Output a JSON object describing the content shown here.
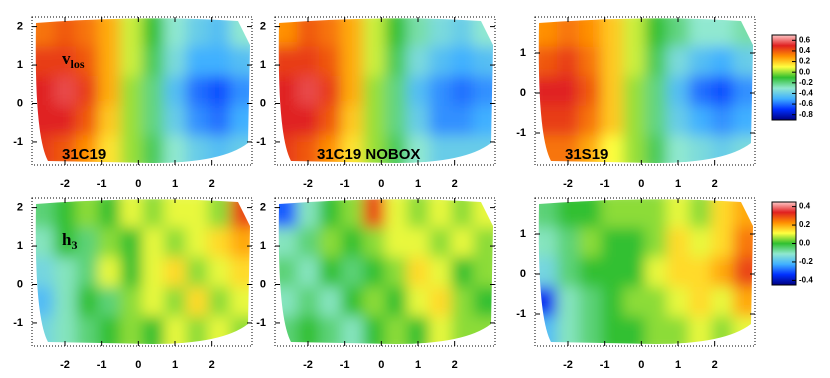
{
  "chart_data": [
    {
      "type": "heatmap",
      "annotation": "v",
      "annotation_sub": "los",
      "label": "31C19",
      "colorbar": 0,
      "xlim": [
        -2.9,
        3.1
      ],
      "ylim": [
        -1.6,
        2.25
      ],
      "xticks": [
        -2,
        -1,
        0,
        1,
        2
      ],
      "yticks": [
        2,
        1,
        0,
        -1
      ],
      "values": [
        [
          0.35,
          0.4,
          0.35,
          0.25,
          0.05,
          -0.1,
          -0.3,
          -0.4,
          -0.45,
          -0.3
        ],
        [
          0.45,
          0.45,
          0.4,
          0.25,
          0.05,
          -0.15,
          -0.35,
          -0.5,
          -0.5,
          -0.45
        ],
        [
          0.5,
          0.55,
          0.45,
          0.25,
          0.0,
          -0.2,
          -0.45,
          -0.6,
          -0.65,
          -0.55
        ],
        [
          0.5,
          0.5,
          0.4,
          0.2,
          0.0,
          -0.2,
          -0.4,
          -0.55,
          -0.6,
          -0.5
        ],
        [
          0.45,
          0.4,
          0.3,
          0.15,
          0.0,
          -0.15,
          -0.3,
          -0.4,
          -0.45,
          -0.4
        ]
      ]
    },
    {
      "type": "heatmap",
      "label": "31C19 NOBOX",
      "colorbar": 0,
      "xlim": [
        -2.9,
        3.1
      ],
      "ylim": [
        -1.6,
        2.25
      ],
      "xticks": [
        -2,
        -1,
        0,
        1,
        2
      ],
      "yticks": [
        2,
        1,
        0,
        -1
      ],
      "values": [
        [
          0.3,
          0.4,
          0.35,
          0.25,
          0.05,
          -0.1,
          -0.25,
          -0.35,
          -0.4,
          -0.3
        ],
        [
          0.45,
          0.45,
          0.4,
          0.25,
          0.05,
          -0.15,
          -0.35,
          -0.45,
          -0.5,
          -0.45
        ],
        [
          0.5,
          0.55,
          0.45,
          0.25,
          0.0,
          -0.2,
          -0.45,
          -0.55,
          -0.6,
          -0.55
        ],
        [
          0.5,
          0.5,
          0.4,
          0.2,
          0.0,
          -0.2,
          -0.4,
          -0.55,
          -0.55,
          -0.5
        ],
        [
          0.45,
          0.4,
          0.3,
          0.15,
          0.0,
          -0.15,
          -0.3,
          -0.4,
          -0.4,
          -0.4
        ]
      ]
    },
    {
      "type": "heatmap",
      "label": "31S19",
      "colorbar": 0,
      "xlim": [
        -2.9,
        3.1
      ],
      "ylim": [
        -1.8,
        1.9
      ],
      "xticks": [
        -2,
        -1,
        0,
        1,
        2
      ],
      "yticks": [
        1,
        0,
        -1
      ],
      "values": [
        [
          0.3,
          0.35,
          0.3,
          0.2,
          0.05,
          -0.1,
          -0.2,
          -0.3,
          -0.3,
          -0.25
        ],
        [
          0.4,
          0.45,
          0.35,
          0.2,
          0.05,
          -0.15,
          -0.35,
          -0.45,
          -0.5,
          -0.4
        ],
        [
          0.5,
          0.5,
          0.4,
          0.2,
          0.0,
          -0.2,
          -0.45,
          -0.6,
          -0.65,
          -0.55
        ],
        [
          0.45,
          0.45,
          0.35,
          0.2,
          0.0,
          -0.2,
          -0.4,
          -0.5,
          -0.55,
          -0.5
        ],
        [
          0.35,
          0.35,
          0.25,
          0.1,
          0.0,
          -0.15,
          -0.3,
          -0.35,
          -0.4,
          -0.35
        ]
      ]
    },
    {
      "type": "heatmap",
      "annotation": "h",
      "annotation_sub": "3",
      "colorbar": 1,
      "xlim": [
        -2.9,
        3.1
      ],
      "ylim": [
        -1.6,
        2.25
      ],
      "xticks": [
        -2,
        -1,
        0,
        1,
        2
      ],
      "yticks": [
        2,
        1,
        0,
        -1
      ],
      "values": [
        [
          -0.05,
          0.0,
          0.05,
          0.0,
          0.1,
          0.05,
          0.1,
          0.1,
          0.05,
          0.3
        ],
        [
          -0.1,
          0.0,
          -0.05,
          0.05,
          0.0,
          0.1,
          0.05,
          0.1,
          0.15,
          0.2
        ],
        [
          -0.15,
          -0.1,
          -0.05,
          0.1,
          0.0,
          0.1,
          0.15,
          0.05,
          0.1,
          0.15
        ],
        [
          -0.2,
          -0.1,
          0.0,
          -0.05,
          0.05,
          0.1,
          0.05,
          0.15,
          0.05,
          0.1
        ],
        [
          -0.15,
          -0.1,
          -0.05,
          0.0,
          0.05,
          0.0,
          0.1,
          0.05,
          0.1,
          0.05
        ]
      ]
    },
    {
      "type": "heatmap",
      "colorbar": 1,
      "xlim": [
        -2.9,
        3.1
      ],
      "ylim": [
        -1.6,
        2.25
      ],
      "xticks": [
        -2,
        -1,
        0,
        1,
        2
      ],
      "yticks": [
        2,
        1,
        0,
        -1
      ],
      "values": [
        [
          -0.3,
          -0.1,
          0.0,
          0.05,
          0.3,
          0.1,
          0.05,
          0.1,
          0.05,
          0.1
        ],
        [
          -0.1,
          -0.05,
          0.05,
          0.0,
          0.05,
          0.1,
          0.1,
          0.05,
          0.1,
          0.05
        ],
        [
          -0.05,
          -0.1,
          0.0,
          -0.05,
          0.0,
          0.05,
          0.15,
          0.1,
          0.0,
          0.05
        ],
        [
          -0.1,
          -0.05,
          -0.1,
          0.0,
          0.05,
          0.0,
          0.1,
          0.15,
          0.05,
          0.0
        ],
        [
          -0.05,
          0.0,
          -0.05,
          -0.1,
          0.0,
          0.05,
          0.0,
          0.1,
          0.05,
          0.05
        ]
      ]
    },
    {
      "type": "heatmap",
      "colorbar": 1,
      "xlim": [
        -2.9,
        3.1
      ],
      "ylim": [
        -1.8,
        1.9
      ],
      "xticks": [
        -2,
        -1,
        0,
        1,
        2
      ],
      "yticks": [
        1,
        0,
        -1
      ],
      "values": [
        [
          -0.05,
          0.0,
          0.0,
          0.05,
          0.05,
          0.05,
          0.1,
          0.05,
          0.15,
          0.2
        ],
        [
          -0.1,
          -0.05,
          0.05,
          0.0,
          0.0,
          0.05,
          0.15,
          0.1,
          0.15,
          0.25
        ],
        [
          -0.15,
          -0.05,
          0.0,
          0.0,
          0.0,
          0.1,
          0.15,
          0.15,
          0.2,
          0.3
        ],
        [
          -0.35,
          -0.1,
          -0.05,
          0.0,
          0.05,
          0.05,
          0.1,
          0.15,
          0.1,
          0.2
        ],
        [
          -0.2,
          -0.1,
          -0.05,
          0.0,
          0.0,
          0.05,
          0.05,
          0.1,
          0.05,
          0.1
        ]
      ]
    }
  ],
  "colorbars": [
    {
      "zlim": [
        -0.9,
        0.7
      ],
      "zticks": [
        0.6,
        0.4,
        0.2,
        {
          "value": 0,
          "label": "0.0"
        },
        -0.2,
        -0.4,
        -0.6,
        -0.8
      ],
      "colormap": [
        "#000080",
        "#0030ff",
        "#40b0ff",
        "#90e8d0",
        "#30c030",
        "#ffff40",
        "#ff9000",
        "#e02020",
        "#ffc8c8"
      ]
    },
    {
      "zlim": [
        -0.45,
        0.45
      ],
      "zticks": [
        0.4,
        0.2,
        {
          "value": 0,
          "label": "0.0"
        },
        -0.2,
        -0.4
      ],
      "colormap": [
        "#000080",
        "#0030ff",
        "#40b0ff",
        "#90e8d0",
        "#30c030",
        "#ffff40",
        "#ff9000",
        "#e02020",
        "#ffc8c8"
      ]
    }
  ]
}
